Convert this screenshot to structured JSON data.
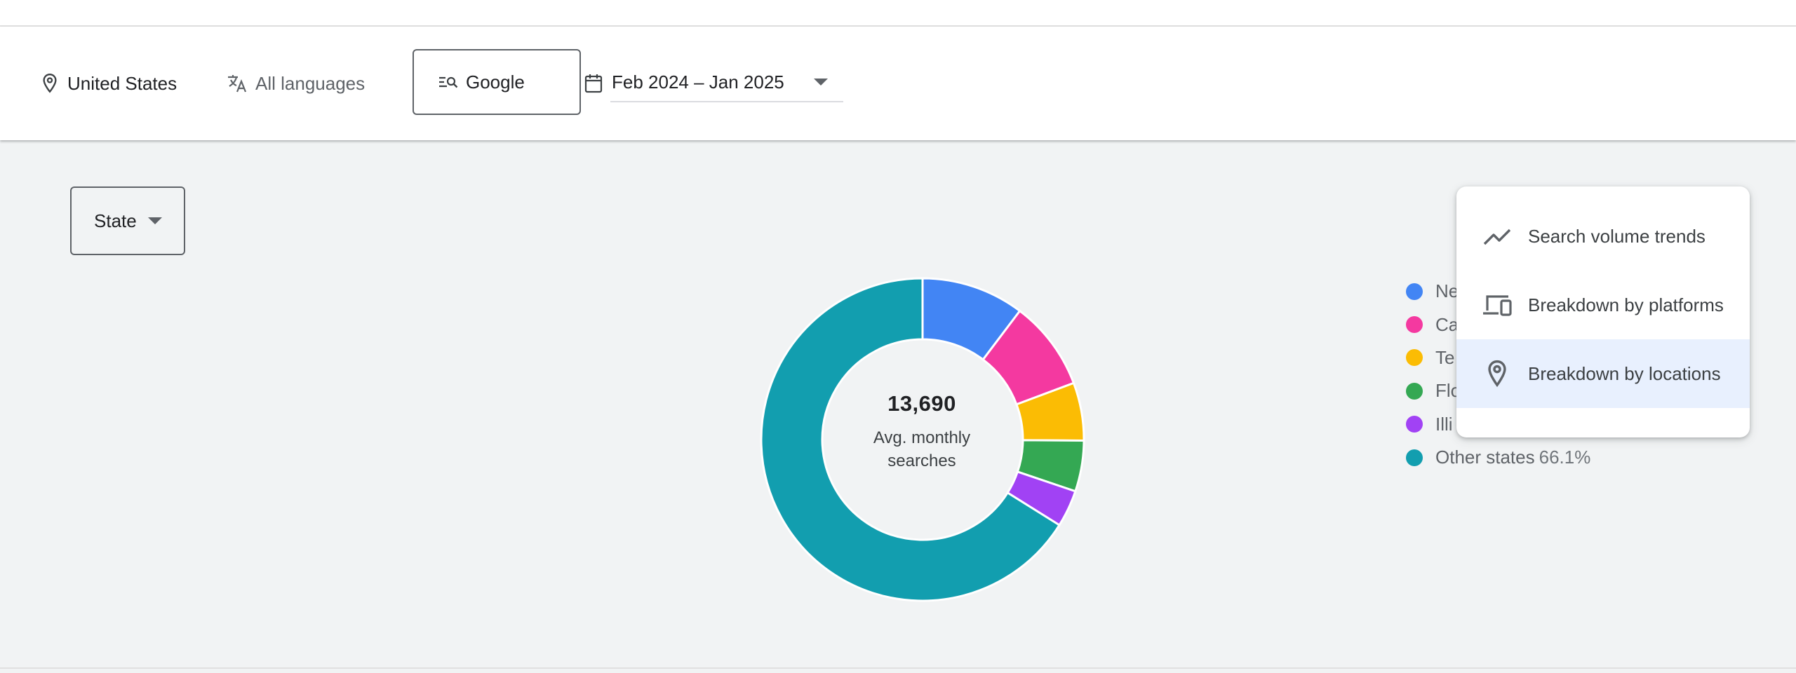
{
  "filters": {
    "location": "United States",
    "language": "All languages",
    "search_engine": "Google",
    "date_range": "Feb 2024 – Jan 2025"
  },
  "breakdown_selector": {
    "label": "State"
  },
  "summary": {
    "value": "13,690",
    "label_line1": "Avg. monthly",
    "label_line2": "searches"
  },
  "legend": [
    {
      "label": "Ne",
      "pct": "",
      "color": "#4285f4"
    },
    {
      "label": "Ca",
      "pct": "",
      "color": "#f439a0"
    },
    {
      "label": "Te",
      "pct": "",
      "color": "#fbbc04"
    },
    {
      "label": "Flo",
      "pct": "",
      "color": "#34a853"
    },
    {
      "label": "Illi",
      "pct": "",
      "color": "#a142f4"
    },
    {
      "label": "Other states",
      "pct": "66.1%",
      "color": "#129eaf"
    }
  ],
  "chart_data": {
    "type": "pie",
    "title": "",
    "categories": [
      "Ne",
      "Ca",
      "Te",
      "Flo",
      "Illi",
      "Other states"
    ],
    "values": [
      10.3,
      9.0,
      5.8,
      5.1,
      3.7,
      66.1
    ],
    "colors": [
      "#4285f4",
      "#f439a0",
      "#fbbc04",
      "#34a853",
      "#a142f4",
      "#129eaf"
    ],
    "donut": true,
    "legend": "right"
  },
  "menu": {
    "items": [
      {
        "label": "Search volume trends",
        "icon": "trending-line-icon",
        "selected": false
      },
      {
        "label": "Breakdown by platforms",
        "icon": "devices-icon",
        "selected": false
      },
      {
        "label": "Breakdown by locations",
        "icon": "location-pin-icon",
        "selected": true
      }
    ]
  }
}
